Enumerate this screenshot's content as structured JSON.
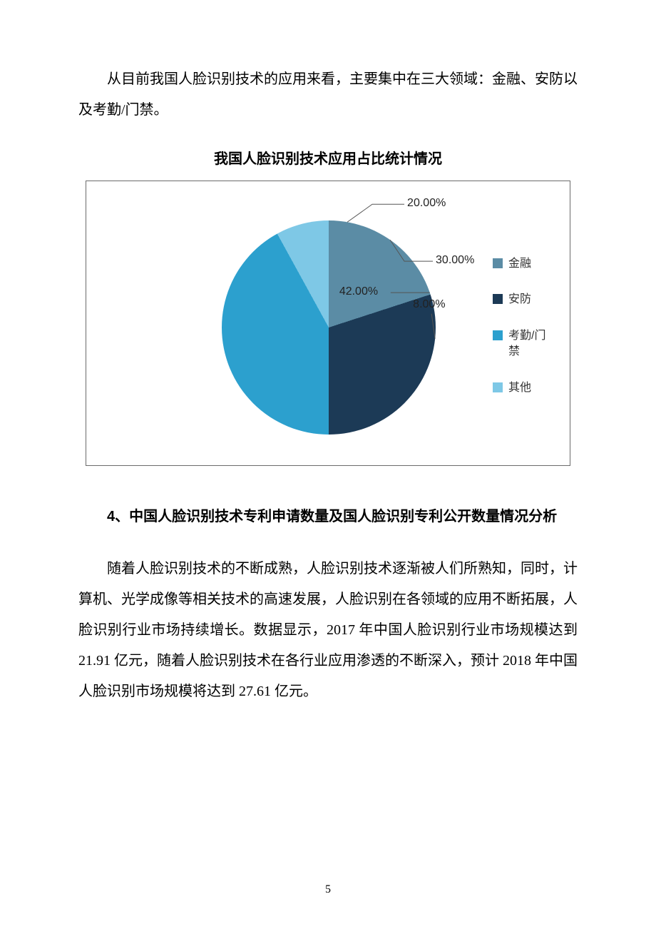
{
  "intro_paragraph": "从目前我国人脸识别技术的应用来看，主要集中在三大领域：金融、安防以及考勤/门禁。",
  "chart": {
    "title": "我国人脸识别技术应用占比统计情况",
    "type": "pie",
    "background_color": "#ffffff",
    "border_color": "#6b6b6b",
    "label_fontsize": 16,
    "label_color": "#222222",
    "leader_color": "#555555",
    "slices": [
      {
        "label": "金融",
        "value": 20.0,
        "pct_text": "20.00%",
        "color": "#5b8ca5"
      },
      {
        "label": "安防",
        "value": 30.0,
        "pct_text": "30.00%",
        "color": "#1c3a56"
      },
      {
        "label": "考勤/门禁",
        "value": 42.0,
        "pct_text": "42.00%",
        "color": "#2ca0ce"
      },
      {
        "label": "其他",
        "value": 8.0,
        "pct_text": "8.00%",
        "color": "#7ec8e6"
      }
    ],
    "legend_swatch_size": 14
  },
  "section_heading": "4、中国人脸识别技术专利申请数量及国人脸识别专利公开数量情况分析",
  "body_paragraph": "随着人脸识别技术的不断成熟，人脸识别技术逐渐被人们所熟知，同时，计算机、光学成像等相关技术的高速发展，人脸识别在各领域的应用不断拓展，人脸识别行业市场持续增长。数据显示，2017 年中国人脸识别行业市场规模达到 21.91 亿元，随着人脸识别技术在各行业应用渗透的不断深入，预计 2018 年中国人脸识别市场规模将达到 27.61 亿元。",
  "page_number": "5"
}
